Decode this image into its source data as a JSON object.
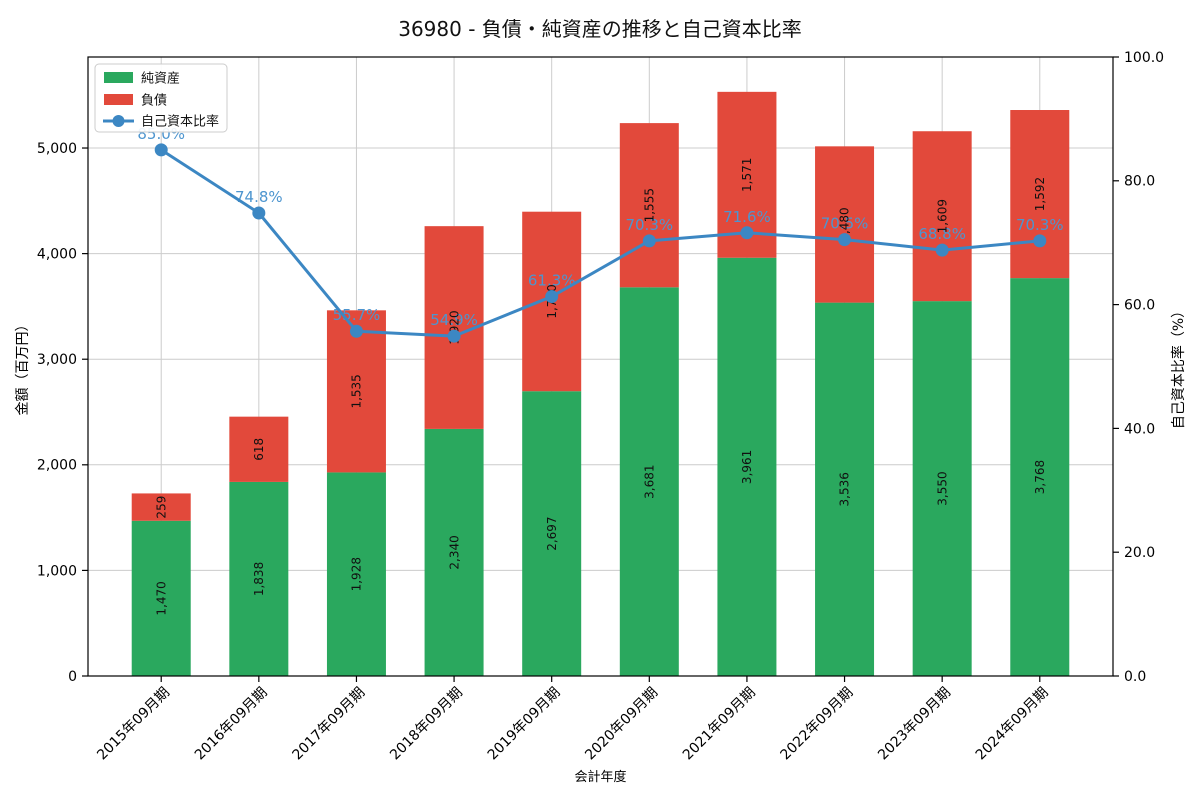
{
  "chart_data": {
    "type": "bar",
    "stacked": true,
    "title": "36980 - 負債・純資産の推移と自己資本比率",
    "xlabel": "会計年度",
    "ylabel_left": "金額（百万円）",
    "ylabel_right": "自己資本比率（%）",
    "categories": [
      "2015年09月期",
      "2016年09月期",
      "2017年09月期",
      "2018年09月期",
      "2019年09月期",
      "2020年09月期",
      "2021年09月期",
      "2022年09月期",
      "2023年09月期",
      "2024年09月期"
    ],
    "series": [
      {
        "name": "純資産",
        "type": "bar",
        "axis": "left",
        "color": "#2aa85e",
        "values": [
          1470,
          1838,
          1928,
          2340,
          2697,
          3681,
          3961,
          3536,
          3550,
          3768
        ],
        "labels": [
          "1,470",
          "1,838",
          "1,928",
          "2,340",
          "2,697",
          "3,681",
          "3,961",
          "3,536",
          "3,550",
          "3,768"
        ]
      },
      {
        "name": "負債",
        "type": "bar",
        "axis": "left",
        "color": "#e2493b",
        "values": [
          259,
          618,
          1535,
          1920,
          1700,
          1555,
          1571,
          1480,
          1609,
          1592
        ],
        "labels": [
          "259",
          "618",
          "1,535",
          "1,920",
          "1,700",
          "1,555",
          "1,571",
          "1,480",
          "1,609",
          "1,592"
        ]
      },
      {
        "name": "自己資本比率",
        "type": "line",
        "axis": "right",
        "color": "#3c87c3",
        "label_color": "#4d95cf",
        "values": [
          85.0,
          74.8,
          55.7,
          54.9,
          61.3,
          70.3,
          71.6,
          70.5,
          68.8,
          70.3
        ],
        "labels": [
          "85.0%",
          "74.8%",
          "55.7%",
          "54.9%",
          "61.3%",
          "70.3%",
          "71.6%",
          "70.5%",
          "68.8%",
          "70.3%"
        ]
      }
    ],
    "ylim_left": [
      0,
      5862
    ],
    "ytick_values_left": [
      0,
      1000,
      2000,
      3000,
      4000,
      5000
    ],
    "yticks_left": [
      "0",
      "1,000",
      "2,000",
      "3,000",
      "4,000",
      "5,000"
    ],
    "ylim_right": [
      0,
      100
    ],
    "ytick_values_right": [
      0,
      20,
      40,
      60,
      80,
      100
    ],
    "yticks_right": [
      "0.0",
      "20.0",
      "40.0",
      "60.0",
      "80.0",
      "100.0"
    ],
    "grid": true,
    "grid_color": "#cccccc",
    "spine_color": "#000000",
    "bar_label_color": "#111111",
    "legend_position": "upper-left",
    "background": "#ffffff"
  }
}
